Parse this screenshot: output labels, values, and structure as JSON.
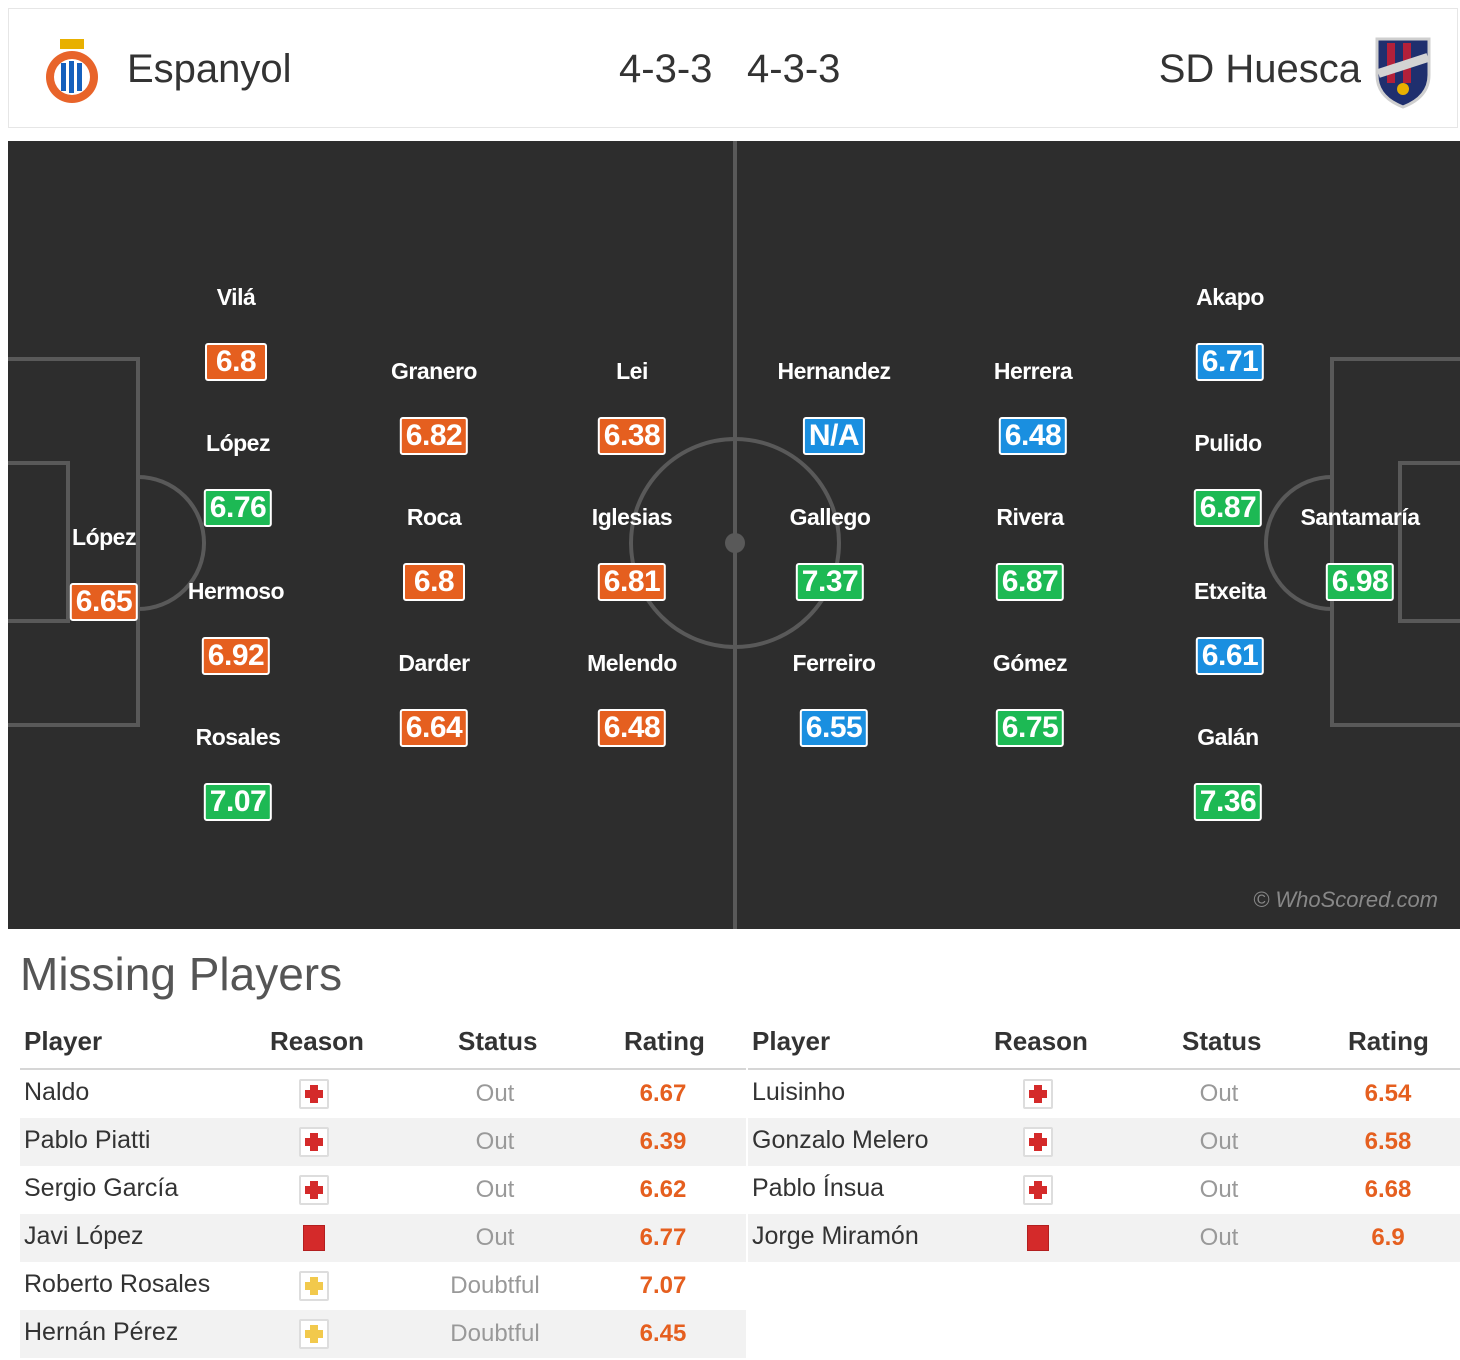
{
  "header": {
    "home_team": "Espanyol",
    "away_team": "SD Huesca",
    "home_formation": "4-3-3",
    "away_formation": "4-3-3",
    "home_crest": "espanyol-crest-icon",
    "away_crest": "huesca-crest-icon"
  },
  "colors": {
    "pitch": "#2d2d2d",
    "rating_orange": "#e55f1f",
    "rating_green": "#1db954",
    "rating_blue": "#1a8fe0",
    "missing_rating": "#e55f1f"
  },
  "pitch": {
    "watermark": "© WhoScored.com",
    "home_players": [
      {
        "name": "López",
        "rating": "6.65",
        "color": "orange"
      },
      {
        "name": "Vilá",
        "rating": "6.8",
        "color": "orange"
      },
      {
        "name": "López",
        "rating": "6.76",
        "color": "green"
      },
      {
        "name": "Hermoso",
        "rating": "6.92",
        "color": "orange"
      },
      {
        "name": "Rosales",
        "rating": "7.07",
        "color": "green"
      },
      {
        "name": "Granero",
        "rating": "6.82",
        "color": "orange"
      },
      {
        "name": "Roca",
        "rating": "6.8",
        "color": "orange"
      },
      {
        "name": "Darder",
        "rating": "6.64",
        "color": "orange"
      },
      {
        "name": "Lei",
        "rating": "6.38",
        "color": "orange"
      },
      {
        "name": "Iglesias",
        "rating": "6.81",
        "color": "orange"
      },
      {
        "name": "Melendo",
        "rating": "6.48",
        "color": "orange"
      }
    ],
    "away_players": [
      {
        "name": "Hernandez",
        "rating": "N/A",
        "color": "blue"
      },
      {
        "name": "Gallego",
        "rating": "7.37",
        "color": "green"
      },
      {
        "name": "Ferreiro",
        "rating": "6.55",
        "color": "blue"
      },
      {
        "name": "Herrera",
        "rating": "6.48",
        "color": "blue"
      },
      {
        "name": "Rivera",
        "rating": "6.87",
        "color": "green"
      },
      {
        "name": "Gómez",
        "rating": "6.75",
        "color": "green"
      },
      {
        "name": "Akapo",
        "rating": "6.71",
        "color": "blue"
      },
      {
        "name": "Pulido",
        "rating": "6.87",
        "color": "green"
      },
      {
        "name": "Etxeita",
        "rating": "6.61",
        "color": "blue"
      },
      {
        "name": "Galán",
        "rating": "7.36",
        "color": "green"
      },
      {
        "name": "Santamaría",
        "rating": "6.98",
        "color": "green"
      }
    ]
  },
  "missing": {
    "title": "Missing Players",
    "columns": {
      "player": "Player",
      "reason": "Reason",
      "status": "Status",
      "rating": "Rating"
    },
    "home": [
      {
        "player": "Naldo",
        "reason": "injury-icon",
        "status": "Out",
        "rating": "6.67"
      },
      {
        "player": "Pablo Piatti",
        "reason": "injury-icon",
        "status": "Out",
        "rating": "6.39"
      },
      {
        "player": "Sergio García",
        "reason": "injury-icon",
        "status": "Out",
        "rating": "6.62"
      },
      {
        "player": "Javi López",
        "reason": "red-card-icon",
        "status": "Out",
        "rating": "6.77"
      },
      {
        "player": "Roberto Rosales",
        "reason": "doubtful-icon",
        "status": "Doubtful",
        "rating": "7.07"
      },
      {
        "player": "Hernán Pérez",
        "reason": "doubtful-icon",
        "status": "Doubtful",
        "rating": "6.45"
      }
    ],
    "away": [
      {
        "player": "Luisinho",
        "reason": "injury-icon",
        "status": "Out",
        "rating": "6.54"
      },
      {
        "player": "Gonzalo Melero",
        "reason": "injury-icon",
        "status": "Out",
        "rating": "6.58"
      },
      {
        "player": "Pablo Ínsua",
        "reason": "injury-icon",
        "status": "Out",
        "rating": "6.68"
      },
      {
        "player": "Jorge Miramón",
        "reason": "red-card-icon",
        "status": "Out",
        "rating": "6.9"
      }
    ]
  }
}
